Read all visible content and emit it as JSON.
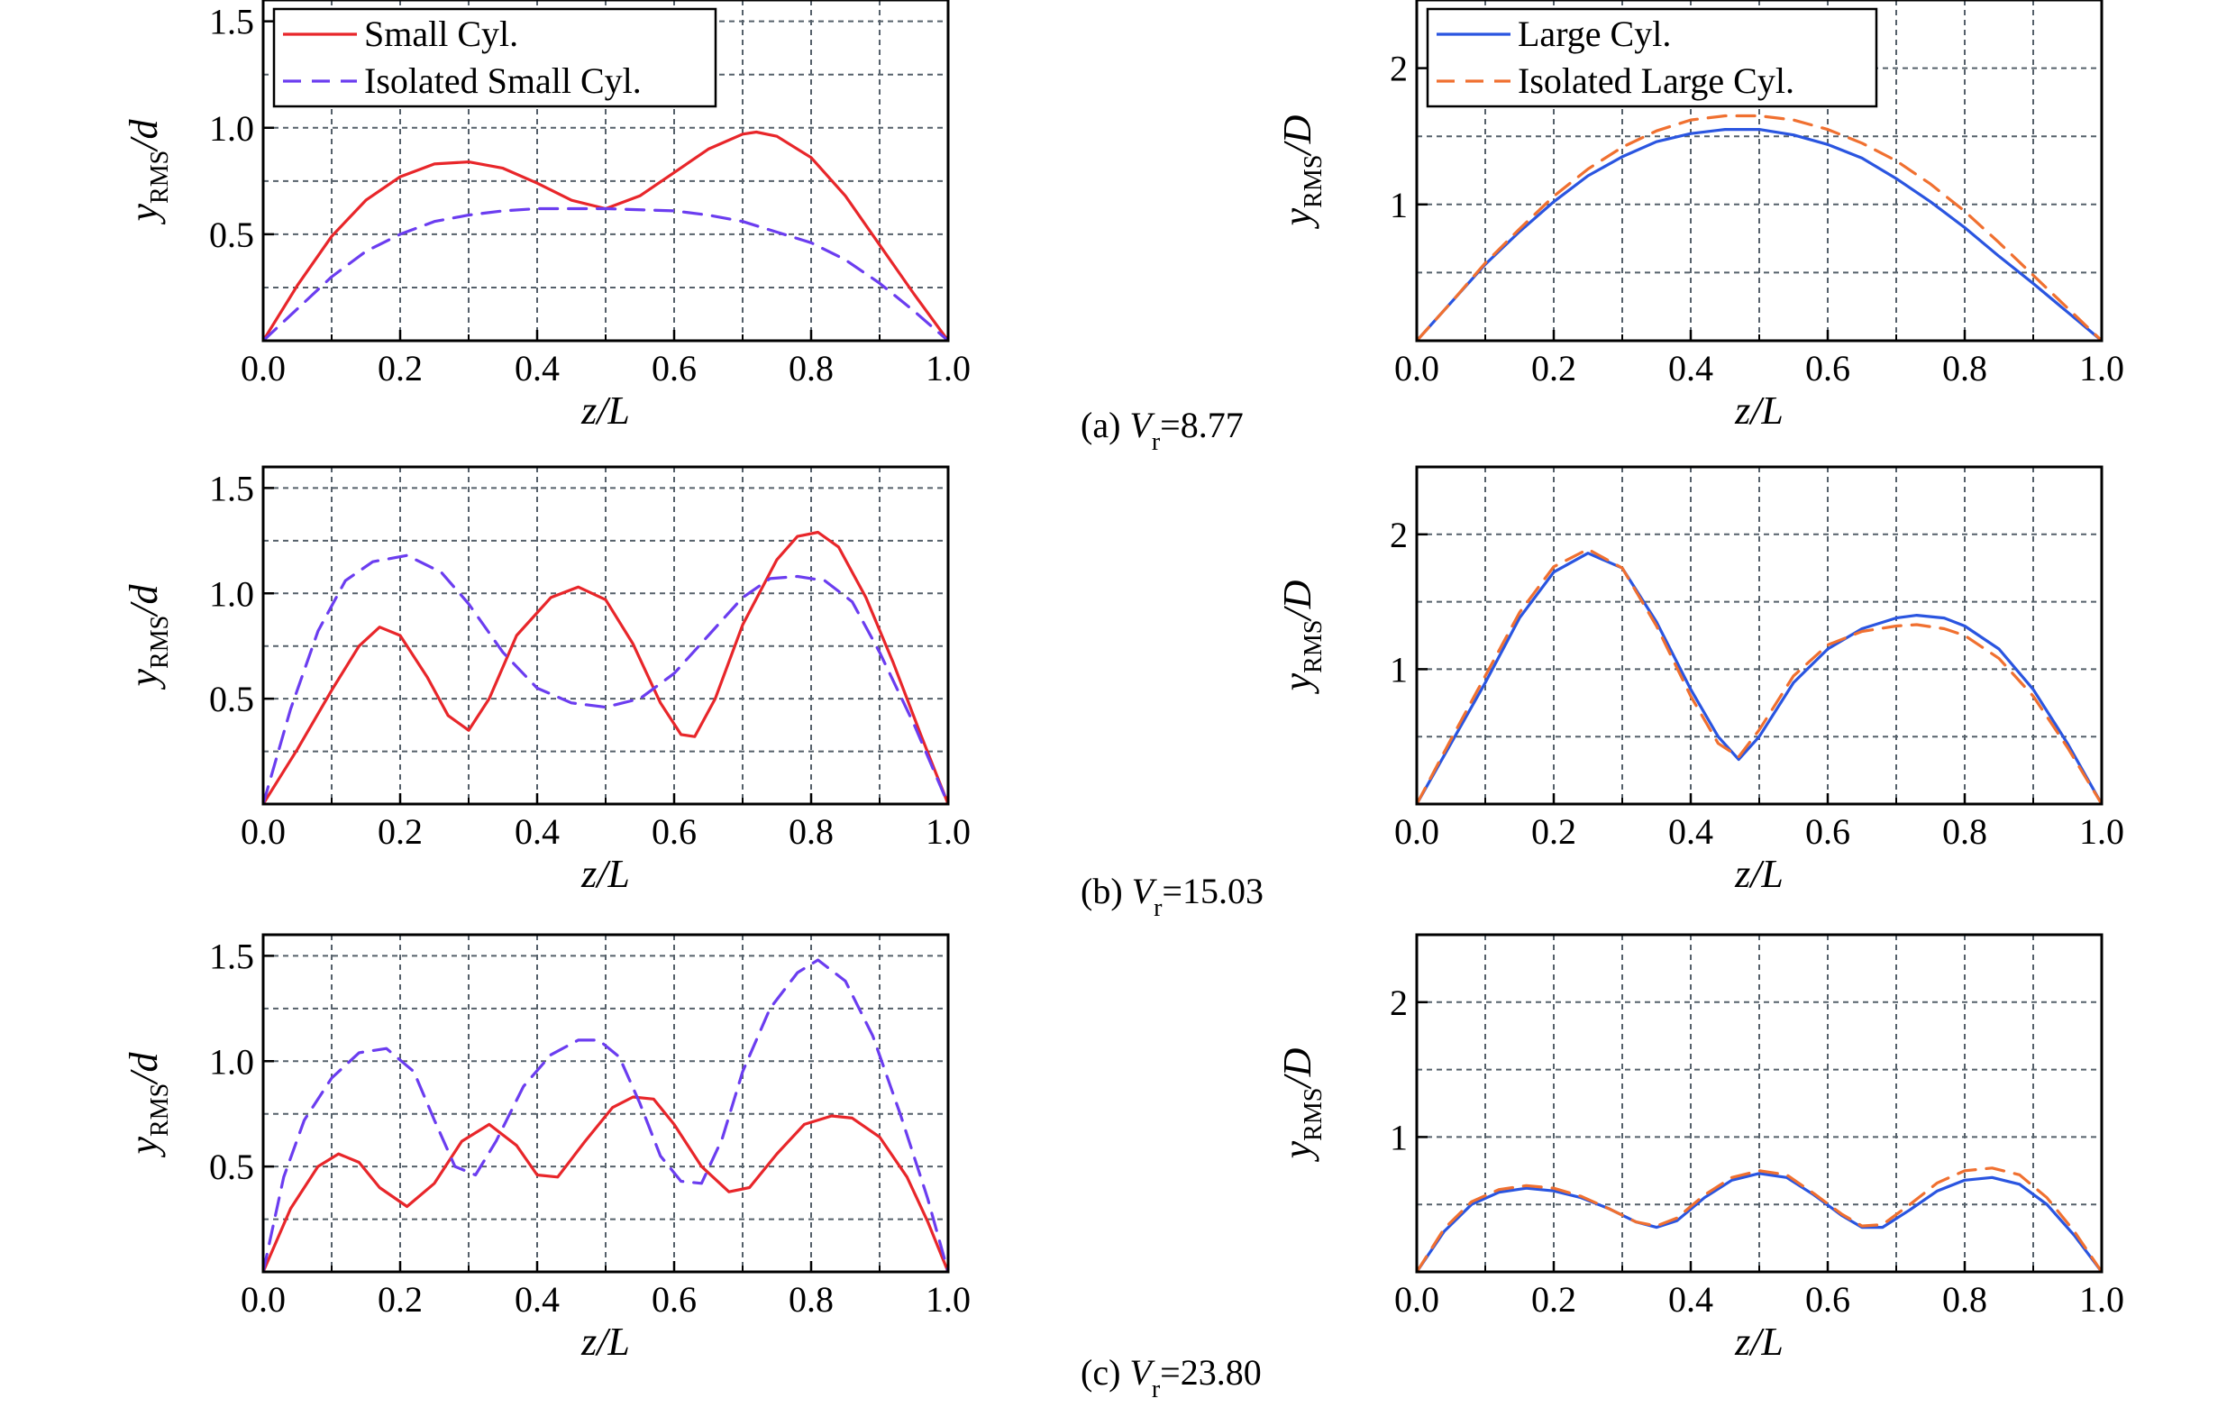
{
  "colors": {
    "small": "#e8262a",
    "small_isolated": "#6b3df0",
    "large": "#2a55e0",
    "large_isolated": "#f07030",
    "grid": "#55606a"
  },
  "captions": [
    {
      "prefix": "(a) ",
      "var": "V",
      "sub": "r",
      "value": "=8.77"
    },
    {
      "prefix": "(b) ",
      "var": "V",
      "sub": "r",
      "value": "=15.03"
    },
    {
      "prefix": "(c) ",
      "var": "V",
      "sub": "r",
      "value": "=23.80"
    }
  ],
  "chart_data": [
    {
      "type": "line",
      "row": "a",
      "side": "left",
      "xlabel": {
        "var": "z",
        "rest": "/L"
      },
      "ylabel": {
        "main": "y",
        "sub": "RMS",
        "rest": "/d"
      },
      "xlim": [
        0,
        1
      ],
      "ylim": [
        0,
        1.6
      ],
      "xticks": [
        "0.0",
        "0.2",
        "0.4",
        "0.6",
        "0.8",
        "1.0"
      ],
      "yticks": [
        0.5,
        1.0,
        1.5
      ],
      "ytick_labels": [
        "0.5",
        "1.0",
        "1.5"
      ],
      "grid": true,
      "legend": "top-left",
      "series": [
        {
          "name": "Small Cyl.",
          "style": "solid",
          "color": "#e8262a",
          "x": [
            0,
            0.05,
            0.1,
            0.15,
            0.2,
            0.25,
            0.3,
            0.35,
            0.4,
            0.45,
            0.5,
            0.55,
            0.6,
            0.65,
            0.7,
            0.72,
            0.75,
            0.8,
            0.85,
            0.9,
            0.95,
            1.0
          ],
          "y": [
            0,
            0.26,
            0.49,
            0.66,
            0.77,
            0.83,
            0.84,
            0.81,
            0.74,
            0.66,
            0.62,
            0.68,
            0.79,
            0.9,
            0.97,
            0.98,
            0.96,
            0.86,
            0.68,
            0.45,
            0.22,
            0
          ]
        },
        {
          "name": "Isolated Small Cyl.",
          "style": "dashed",
          "color": "#6b3df0",
          "x": [
            0,
            0.05,
            0.1,
            0.15,
            0.2,
            0.25,
            0.3,
            0.35,
            0.4,
            0.5,
            0.6,
            0.65,
            0.7,
            0.75,
            0.8,
            0.85,
            0.9,
            0.95,
            1.0
          ],
          "y": [
            0,
            0.15,
            0.3,
            0.42,
            0.5,
            0.56,
            0.59,
            0.61,
            0.62,
            0.62,
            0.61,
            0.59,
            0.56,
            0.51,
            0.46,
            0.38,
            0.27,
            0.14,
            0
          ]
        }
      ]
    },
    {
      "type": "line",
      "row": "a",
      "side": "right",
      "xlabel": {
        "var": "z",
        "rest": "/L"
      },
      "ylabel": {
        "main": "y",
        "sub": "RMS",
        "rest": "/D"
      },
      "xlim": [
        0,
        1
      ],
      "ylim": [
        0,
        2.5
      ],
      "xticks": [
        "0.0",
        "0.2",
        "0.4",
        "0.6",
        "0.8",
        "1.0"
      ],
      "yticks": [
        1,
        2
      ],
      "ytick_labels": [
        "1",
        "2"
      ],
      "grid": true,
      "legend": "top-left",
      "series": [
        {
          "name": "Large Cyl.",
          "style": "solid",
          "color": "#2a55e0",
          "x": [
            0,
            0.05,
            0.1,
            0.15,
            0.2,
            0.25,
            0.3,
            0.35,
            0.4,
            0.45,
            0.5,
            0.55,
            0.6,
            0.65,
            0.7,
            0.75,
            0.8,
            0.85,
            0.9,
            0.95,
            1.0
          ],
          "y": [
            0,
            0.28,
            0.56,
            0.8,
            1.02,
            1.21,
            1.35,
            1.46,
            1.52,
            1.55,
            1.55,
            1.51,
            1.44,
            1.34,
            1.19,
            1.02,
            0.83,
            0.62,
            0.42,
            0.21,
            0
          ]
        },
        {
          "name": "Isolated Large Cyl.",
          "style": "dashed",
          "color": "#f07030",
          "x": [
            0,
            0.05,
            0.1,
            0.15,
            0.2,
            0.25,
            0.3,
            0.35,
            0.4,
            0.45,
            0.5,
            0.55,
            0.6,
            0.65,
            0.7,
            0.75,
            0.8,
            0.85,
            0.9,
            0.95,
            1.0
          ],
          "y": [
            0,
            0.28,
            0.57,
            0.82,
            1.06,
            1.26,
            1.42,
            1.54,
            1.62,
            1.65,
            1.65,
            1.62,
            1.55,
            1.45,
            1.32,
            1.15,
            0.95,
            0.72,
            0.48,
            0.24,
            0
          ]
        }
      ]
    },
    {
      "type": "line",
      "row": "b",
      "side": "left",
      "xlabel": {
        "var": "z",
        "rest": "/L"
      },
      "ylabel": {
        "main": "y",
        "sub": "RMS",
        "rest": "/d"
      },
      "xlim": [
        0,
        1
      ],
      "ylim": [
        0,
        1.6
      ],
      "xticks": [
        "0.0",
        "0.2",
        "0.4",
        "0.6",
        "0.8",
        "1.0"
      ],
      "yticks": [
        0.5,
        1.0,
        1.5
      ],
      "ytick_labels": [
        "0.5",
        "1.0",
        "1.5"
      ],
      "grid": true,
      "series": [
        {
          "name": "Small Cyl.",
          "style": "solid",
          "color": "#e8262a",
          "x": [
            0,
            0.05,
            0.1,
            0.14,
            0.17,
            0.2,
            0.24,
            0.27,
            0.3,
            0.33,
            0.37,
            0.42,
            0.46,
            0.5,
            0.54,
            0.58,
            0.61,
            0.63,
            0.66,
            0.7,
            0.75,
            0.78,
            0.81,
            0.84,
            0.88,
            0.92,
            0.96,
            1.0
          ],
          "y": [
            0,
            0.26,
            0.54,
            0.75,
            0.84,
            0.8,
            0.6,
            0.42,
            0.35,
            0.5,
            0.8,
            0.98,
            1.03,
            0.97,
            0.76,
            0.48,
            0.33,
            0.32,
            0.5,
            0.85,
            1.16,
            1.27,
            1.29,
            1.22,
            0.98,
            0.67,
            0.33,
            0
          ]
        },
        {
          "name": "Isolated Small Cyl.",
          "style": "dashed",
          "color": "#6b3df0",
          "x": [
            0,
            0.04,
            0.08,
            0.12,
            0.16,
            0.21,
            0.26,
            0.3,
            0.35,
            0.4,
            0.45,
            0.5,
            0.55,
            0.6,
            0.65,
            0.7,
            0.74,
            0.78,
            0.82,
            0.86,
            0.9,
            0.95,
            1.0
          ],
          "y": [
            0,
            0.45,
            0.82,
            1.06,
            1.15,
            1.18,
            1.1,
            0.95,
            0.72,
            0.55,
            0.48,
            0.46,
            0.5,
            0.62,
            0.8,
            0.98,
            1.07,
            1.08,
            1.06,
            0.96,
            0.72,
            0.38,
            0
          ]
        }
      ]
    },
    {
      "type": "line",
      "row": "b",
      "side": "right",
      "xlabel": {
        "var": "z",
        "rest": "/L"
      },
      "ylabel": {
        "main": "y",
        "sub": "RMS",
        "rest": "/D"
      },
      "xlim": [
        0,
        1
      ],
      "ylim": [
        0,
        2.5
      ],
      "xticks": [
        "0.0",
        "0.2",
        "0.4",
        "0.6",
        "0.8",
        "1.0"
      ],
      "yticks": [
        1,
        2
      ],
      "ytick_labels": [
        "1",
        "2"
      ],
      "grid": true,
      "series": [
        {
          "name": "Large Cyl.",
          "style": "solid",
          "color": "#2a55e0",
          "x": [
            0,
            0.05,
            0.1,
            0.15,
            0.2,
            0.25,
            0.3,
            0.35,
            0.4,
            0.44,
            0.47,
            0.5,
            0.55,
            0.6,
            0.65,
            0.7,
            0.73,
            0.77,
            0.8,
            0.85,
            0.9,
            0.95,
            1.0
          ],
          "y": [
            0,
            0.45,
            0.9,
            1.38,
            1.72,
            1.86,
            1.75,
            1.35,
            0.85,
            0.5,
            0.33,
            0.5,
            0.9,
            1.15,
            1.3,
            1.38,
            1.4,
            1.38,
            1.32,
            1.15,
            0.85,
            0.45,
            0
          ]
        },
        {
          "name": "Isolated Large Cyl.",
          "style": "dashed",
          "color": "#f07030",
          "x": [
            0,
            0.05,
            0.1,
            0.15,
            0.2,
            0.25,
            0.3,
            0.35,
            0.4,
            0.44,
            0.47,
            0.5,
            0.55,
            0.6,
            0.65,
            0.7,
            0.73,
            0.77,
            0.8,
            0.85,
            0.9,
            0.95,
            1.0
          ],
          "y": [
            0,
            0.48,
            0.95,
            1.42,
            1.76,
            1.89,
            1.75,
            1.32,
            0.8,
            0.45,
            0.35,
            0.55,
            0.95,
            1.18,
            1.28,
            1.32,
            1.33,
            1.3,
            1.25,
            1.08,
            0.8,
            0.42,
            0
          ]
        }
      ]
    },
    {
      "type": "line",
      "row": "c",
      "side": "left",
      "xlabel": {
        "var": "z",
        "rest": "/L"
      },
      "ylabel": {
        "main": "y",
        "sub": "RMS",
        "rest": "/d"
      },
      "xlim": [
        0,
        1
      ],
      "ylim": [
        0,
        1.6
      ],
      "xticks": [
        "0.0",
        "0.2",
        "0.4",
        "0.6",
        "0.8",
        "1.0"
      ],
      "yticks": [
        0.5,
        1.0,
        1.5
      ],
      "ytick_labels": [
        "0.5",
        "1.0",
        "1.5"
      ],
      "grid": true,
      "series": [
        {
          "name": "Small Cyl.",
          "style": "solid",
          "color": "#e8262a",
          "x": [
            0,
            0.04,
            0.08,
            0.11,
            0.14,
            0.17,
            0.21,
            0.25,
            0.29,
            0.33,
            0.37,
            0.4,
            0.43,
            0.47,
            0.51,
            0.54,
            0.57,
            0.6,
            0.64,
            0.68,
            0.71,
            0.75,
            0.79,
            0.83,
            0.86,
            0.9,
            0.94,
            0.97,
            1.0
          ],
          "y": [
            0,
            0.3,
            0.5,
            0.56,
            0.52,
            0.4,
            0.31,
            0.42,
            0.62,
            0.7,
            0.6,
            0.46,
            0.45,
            0.62,
            0.78,
            0.83,
            0.82,
            0.7,
            0.5,
            0.38,
            0.4,
            0.56,
            0.7,
            0.74,
            0.73,
            0.64,
            0.45,
            0.24,
            0
          ]
        },
        {
          "name": "Isolated Small Cyl.",
          "style": "dashed",
          "color": "#6b3df0",
          "x": [
            0,
            0.03,
            0.06,
            0.1,
            0.14,
            0.18,
            0.22,
            0.25,
            0.28,
            0.31,
            0.34,
            0.38,
            0.42,
            0.46,
            0.49,
            0.52,
            0.55,
            0.58,
            0.61,
            0.64,
            0.67,
            0.7,
            0.74,
            0.78,
            0.81,
            0.85,
            0.89,
            0.93,
            0.97,
            1.0
          ],
          "y": [
            0,
            0.45,
            0.72,
            0.92,
            1.04,
            1.06,
            0.95,
            0.72,
            0.5,
            0.46,
            0.62,
            0.88,
            1.03,
            1.1,
            1.1,
            1.02,
            0.8,
            0.55,
            0.43,
            0.42,
            0.63,
            0.95,
            1.25,
            1.42,
            1.48,
            1.38,
            1.12,
            0.75,
            0.35,
            0
          ]
        }
      ]
    },
    {
      "type": "line",
      "row": "c",
      "side": "right",
      "xlabel": {
        "var": "z",
        "rest": "/L"
      },
      "ylabel": {
        "main": "y",
        "sub": "RMS",
        "rest": "/D"
      },
      "xlim": [
        0,
        1
      ],
      "ylim": [
        0,
        2.5
      ],
      "xticks": [
        "0.0",
        "0.2",
        "0.4",
        "0.6",
        "0.8",
        "1.0"
      ],
      "yticks": [
        1,
        2
      ],
      "ytick_labels": [
        "1",
        "2"
      ],
      "grid": true,
      "series": [
        {
          "name": "Large Cyl.",
          "style": "solid",
          "color": "#2a55e0",
          "x": [
            0,
            0.04,
            0.08,
            0.12,
            0.16,
            0.2,
            0.24,
            0.28,
            0.32,
            0.35,
            0.38,
            0.42,
            0.46,
            0.5,
            0.54,
            0.58,
            0.62,
            0.65,
            0.68,
            0.72,
            0.76,
            0.8,
            0.84,
            0.88,
            0.92,
            0.96,
            1.0
          ],
          "y": [
            0,
            0.3,
            0.5,
            0.59,
            0.62,
            0.6,
            0.55,
            0.47,
            0.37,
            0.33,
            0.38,
            0.55,
            0.68,
            0.73,
            0.7,
            0.57,
            0.42,
            0.33,
            0.33,
            0.46,
            0.6,
            0.68,
            0.7,
            0.65,
            0.5,
            0.27,
            0
          ]
        },
        {
          "name": "Isolated Large Cyl.",
          "style": "dashed",
          "color": "#f07030",
          "x": [
            0,
            0.04,
            0.08,
            0.12,
            0.16,
            0.2,
            0.24,
            0.28,
            0.32,
            0.35,
            0.38,
            0.42,
            0.46,
            0.5,
            0.54,
            0.58,
            0.62,
            0.65,
            0.68,
            0.72,
            0.76,
            0.8,
            0.84,
            0.88,
            0.92,
            0.96,
            1.0
          ],
          "y": [
            0,
            0.32,
            0.52,
            0.61,
            0.64,
            0.62,
            0.56,
            0.47,
            0.37,
            0.34,
            0.4,
            0.57,
            0.7,
            0.75,
            0.72,
            0.58,
            0.43,
            0.34,
            0.35,
            0.5,
            0.66,
            0.75,
            0.77,
            0.72,
            0.55,
            0.3,
            0
          ]
        }
      ]
    }
  ]
}
